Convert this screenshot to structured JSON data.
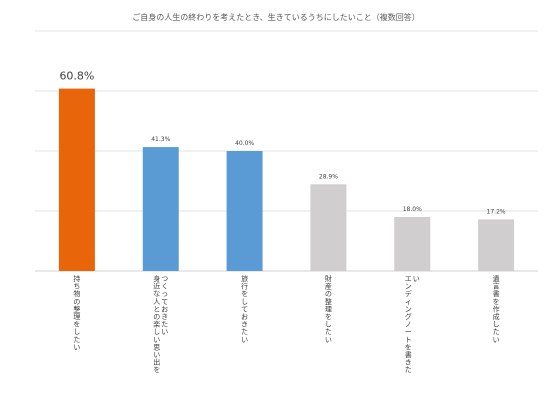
{
  "chart_data": {
    "type": "bar",
    "title": "ご自身の人生の終わりを考えたとき、生きているうちにしたいこと（複数回答）",
    "categories": [
      "持ち物の整理をしたい",
      "身近な人との楽しい思い出をつくっておきたい",
      "旅行をしておきたい",
      "財産の整理をしたい",
      "エンディングノートを書きたい",
      "遺言書を作成したい"
    ],
    "values": [
      60.8,
      41.3,
      40.0,
      28.9,
      18.0,
      17.2
    ],
    "value_labels": [
      "60.8%",
      "41.3%",
      "40.0%",
      "28.9%",
      "18.0%",
      "17.2%"
    ],
    "colors": [
      "#e8650a",
      "#5b9bd5",
      "#5b9bd5",
      "#d0cece",
      "#d0cece",
      "#d0cece"
    ],
    "ylim": [
      0,
      80
    ],
    "grid": true,
    "legend": "none"
  }
}
